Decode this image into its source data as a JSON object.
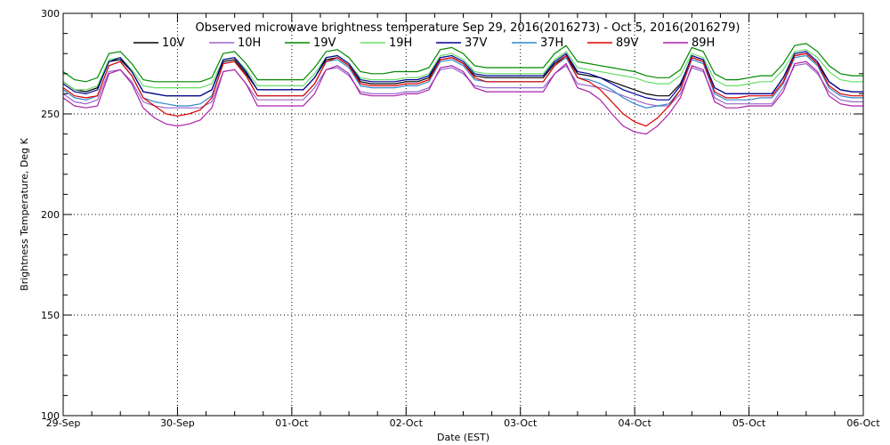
{
  "chart_data": {
    "type": "line",
    "title": "Observed microwave brightness temperature Sep 29, 2016(2016273) - Oct  5, 2016(2016279)",
    "xlabel": "Date (EST)",
    "ylabel": "Brightness Temperature, Deg K",
    "ylim": [
      100,
      300
    ],
    "yticks": [
      100,
      150,
      200,
      250,
      300
    ],
    "xlim": [
      0,
      7
    ],
    "xticks": [
      0,
      1,
      2,
      3,
      4,
      5,
      6,
      7
    ],
    "xtick_labels": [
      "29-Sep",
      "30-Sep",
      "01-Oct",
      "02-Oct",
      "03-Oct",
      "04-Oct",
      "05-Oct",
      "06-Oct"
    ],
    "grid": true,
    "legend_placement": "top",
    "x": [
      0,
      0.1,
      0.2,
      0.3,
      0.4,
      0.5,
      0.6,
      0.7,
      0.8,
      0.9,
      1.0,
      1.1,
      1.2,
      1.3,
      1.4,
      1.5,
      1.6,
      1.7,
      1.8,
      1.9,
      2.0,
      2.1,
      2.2,
      2.3,
      2.4,
      2.5,
      2.6,
      2.7,
      2.8,
      2.9,
      3.0,
      3.1,
      3.2,
      3.3,
      3.4,
      3.5,
      3.6,
      3.7,
      3.8,
      3.9,
      4.0,
      4.1,
      4.2,
      4.3,
      4.4,
      4.5,
      4.6,
      4.7,
      4.8,
      4.9,
      5.0,
      5.1,
      5.2,
      5.3,
      5.4,
      5.5,
      5.6,
      5.7,
      5.8,
      5.9,
      6.0,
      6.1,
      6.2,
      6.3,
      6.4,
      6.5,
      6.6,
      6.7,
      6.8,
      6.9,
      7.0
    ],
    "series": [
      {
        "name": "10V",
        "color": "#000000",
        "values": [
          266,
          262,
          261,
          263,
          276,
          277,
          271,
          261,
          260,
          259,
          259,
          259,
          259,
          262,
          276,
          277,
          270,
          262,
          262,
          262,
          262,
          262,
          268,
          277,
          278,
          274,
          266,
          265,
          265,
          265,
          266,
          266,
          268,
          277,
          278,
          275,
          269,
          268,
          268,
          268,
          268,
          268,
          268,
          275,
          279,
          270,
          269,
          268,
          266,
          264,
          262,
          260,
          259,
          259,
          265,
          278,
          276,
          263,
          260,
          260,
          260,
          260,
          260,
          268,
          279,
          280,
          275,
          266,
          262,
          261,
          261
        ]
      },
      {
        "name": "10H",
        "color": "#9966cc",
        "values": [
          260,
          256,
          255,
          257,
          271,
          272,
          266,
          256,
          254,
          253,
          253,
          253,
          253,
          256,
          271,
          272,
          265,
          257,
          257,
          257,
          257,
          257,
          263,
          272,
          273,
          269,
          261,
          260,
          260,
          260,
          261,
          261,
          263,
          272,
          273,
          270,
          264,
          263,
          263,
          263,
          263,
          263,
          263,
          270,
          274,
          265,
          264,
          263,
          261,
          259,
          257,
          255,
          254,
          254,
          260,
          273,
          271,
          258,
          255,
          255,
          255,
          255,
          255,
          263,
          274,
          275,
          270,
          261,
          257,
          256,
          256
        ]
      },
      {
        "name": "19V",
        "color": "#008800",
        "values": [
          271,
          267,
          266,
          268,
          280,
          281,
          275,
          267,
          266,
          266,
          266,
          266,
          266,
          268,
          280,
          281,
          275,
          267,
          267,
          267,
          267,
          267,
          273,
          281,
          282,
          278,
          271,
          270,
          270,
          271,
          271,
          271,
          273,
          282,
          283,
          280,
          274,
          273,
          273,
          273,
          273,
          273,
          273,
          280,
          284,
          276,
          275,
          274,
          273,
          272,
          271,
          269,
          268,
          268,
          272,
          283,
          281,
          270,
          267,
          267,
          268,
          269,
          269,
          275,
          284,
          285,
          281,
          274,
          270,
          269,
          269
        ]
      },
      {
        "name": "19H",
        "color": "#66dd66",
        "values": [
          266,
          262,
          262,
          264,
          277,
          278,
          272,
          264,
          263,
          263,
          263,
          263,
          263,
          265,
          277,
          278,
          272,
          264,
          264,
          264,
          264,
          264,
          270,
          278,
          279,
          275,
          268,
          267,
          267,
          267,
          268,
          268,
          270,
          279,
          280,
          277,
          271,
          270,
          270,
          270,
          270,
          270,
          270,
          277,
          281,
          273,
          272,
          271,
          270,
          269,
          268,
          266,
          265,
          265,
          269,
          280,
          278,
          267,
          264,
          264,
          265,
          266,
          266,
          272,
          281,
          282,
          278,
          271,
          267,
          266,
          266
        ]
      },
      {
        "name": "37V",
        "color": "#000099",
        "values": [
          265,
          261,
          260,
          262,
          276,
          278,
          271,
          261,
          260,
          259,
          259,
          259,
          259,
          262,
          277,
          278,
          271,
          262,
          262,
          262,
          262,
          262,
          268,
          278,
          279,
          275,
          267,
          266,
          266,
          266,
          267,
          267,
          269,
          278,
          279,
          276,
          270,
          269,
          269,
          269,
          269,
          269,
          269,
          276,
          280,
          271,
          270,
          268,
          265,
          262,
          260,
          258,
          257,
          257,
          264,
          279,
          277,
          263,
          260,
          260,
          260,
          260,
          260,
          268,
          280,
          281,
          276,
          266,
          262,
          261,
          261
        ]
      },
      {
        "name": "37H",
        "color": "#3388cc",
        "values": [
          262,
          258,
          257,
          259,
          274,
          276,
          269,
          258,
          256,
          255,
          254,
          254,
          255,
          259,
          275,
          276,
          269,
          259,
          259,
          259,
          259,
          259,
          265,
          276,
          277,
          273,
          264,
          263,
          263,
          263,
          264,
          264,
          266,
          276,
          277,
          274,
          267,
          266,
          266,
          266,
          266,
          266,
          266,
          274,
          278,
          268,
          267,
          265,
          262,
          258,
          255,
          253,
          254,
          255,
          262,
          277,
          275,
          260,
          257,
          257,
          257,
          258,
          258,
          265,
          278,
          279,
          274,
          263,
          259,
          258,
          258
        ]
      },
      {
        "name": "89V",
        "color": "#dd0000",
        "values": [
          263,
          259,
          258,
          259,
          274,
          276,
          269,
          258,
          254,
          250,
          249,
          250,
          252,
          258,
          275,
          276,
          269,
          259,
          259,
          259,
          259,
          259,
          265,
          276,
          278,
          274,
          265,
          264,
          264,
          264,
          265,
          265,
          267,
          277,
          278,
          275,
          268,
          266,
          266,
          266,
          266,
          266,
          266,
          274,
          279,
          268,
          266,
          262,
          256,
          250,
          246,
          244,
          248,
          254,
          262,
          278,
          276,
          261,
          258,
          258,
          259,
          259,
          259,
          266,
          279,
          280,
          275,
          264,
          260,
          259,
          259
        ]
      },
      {
        "name": "89H",
        "color": "#aa22aa",
        "values": [
          258,
          254,
          253,
          254,
          270,
          272,
          265,
          253,
          248,
          245,
          244,
          245,
          247,
          253,
          271,
          272,
          265,
          254,
          254,
          254,
          254,
          254,
          260,
          272,
          274,
          270,
          260,
          259,
          259,
          259,
          260,
          260,
          262,
          273,
          274,
          271,
          263,
          261,
          261,
          261,
          261,
          261,
          261,
          270,
          275,
          263,
          261,
          257,
          250,
          244,
          241,
          240,
          244,
          250,
          258,
          274,
          272,
          256,
          253,
          253,
          254,
          254,
          254,
          261,
          275,
          276,
          271,
          259,
          255,
          254,
          254
        ]
      }
    ]
  }
}
